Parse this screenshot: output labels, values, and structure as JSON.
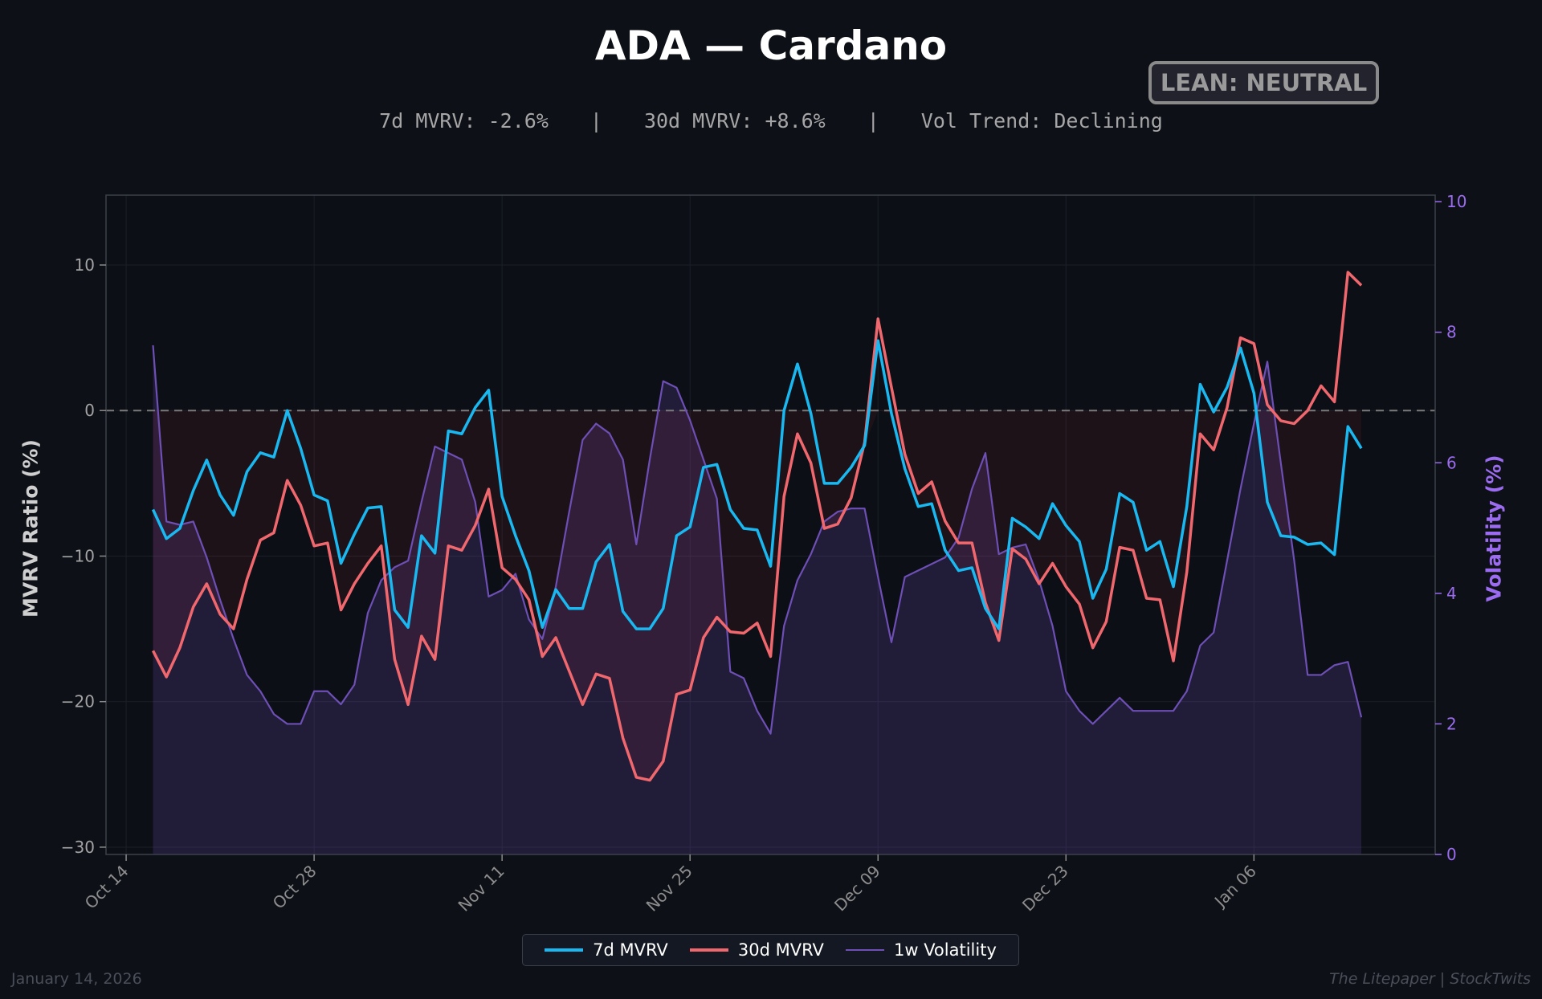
{
  "header": {
    "title": "ADA — Cardano",
    "badge": "LEAN: NEUTRAL",
    "metric_7d": "7d MVRV: -2.6%",
    "metric_30d": "30d MVRV: +8.6%",
    "metric_vol": "Vol Trend: Declining",
    "separator": "|"
  },
  "footer": {
    "date": "January 14, 2026",
    "credit": "The Litepaper | StockTwits"
  },
  "colors": {
    "background": "#0d1017",
    "mvrv7": "#1ab8f0",
    "mvrv30": "#f0686e",
    "vol": "#6d4fb5",
    "vol_axis": "#9b6cf0"
  },
  "chart_data": {
    "type": "line",
    "x_axis_label": "",
    "y_left_label": "MVRV Ratio (%)",
    "y_right_label": "Volatility (%)",
    "x_ticks": [
      "Oct 14",
      "Oct 28",
      "Nov 11",
      "Nov 25",
      "Dec 09",
      "Dec 23",
      "Jan 06"
    ],
    "x_start_date": "2025-10-16",
    "x_range_days": [
      -3.5,
      95.5
    ],
    "y_left_ticks": [
      "10",
      "0",
      "−10",
      "−20",
      "−30"
    ],
    "y_left_tick_values": [
      10,
      0,
      -10,
      -20,
      -30
    ],
    "y_left_range": [
      -30.5,
      14.8
    ],
    "y_right_ticks": [
      "10",
      "8",
      "6",
      "4",
      "2",
      "0"
    ],
    "y_right_tick_values": [
      10,
      8,
      6,
      4,
      2,
      0
    ],
    "y_right_range": [
      0,
      10.1
    ],
    "zero_line": 0,
    "series": [
      {
        "name": "7d MVRV",
        "axis": "left",
        "values": [
          -6.8,
          -8.8,
          -8.1,
          -5.5,
          -3.4,
          -5.8,
          -7.2,
          -4.2,
          -2.9,
          -3.2,
          0.0,
          -2.6,
          -5.8,
          -6.2,
          -10.5,
          -8.5,
          -6.7,
          -6.6,
          -13.7,
          -14.9,
          -8.6,
          -9.8,
          -1.4,
          -1.6,
          0.2,
          1.4,
          -5.9,
          -8.6,
          -11.0,
          -14.9,
          -12.3,
          -13.6,
          -13.6,
          -10.4,
          -9.2,
          -13.8,
          -15.0,
          -15.0,
          -13.6,
          -8.6,
          -8.0,
          -3.9,
          -3.7,
          -6.8,
          -8.1,
          -8.2,
          -10.7,
          0.0,
          3.2,
          -0.2,
          -5.0,
          -5.0,
          -3.9,
          -2.4,
          4.8,
          -0.2,
          -4.0,
          -6.6,
          -6.4,
          -9.6,
          -11.0,
          -10.8,
          -13.6,
          -15.0,
          -7.4,
          -8.0,
          -8.8,
          -6.4,
          -7.9,
          -9.0,
          -12.9,
          -10.9,
          -5.7,
          -6.3,
          -9.6,
          -9.0,
          -12.1,
          -6.6,
          1.8,
          -0.1,
          1.6,
          4.3,
          1.2,
          -6.3,
          -8.6,
          -8.7,
          -9.2,
          -9.1,
          -9.9,
          -1.1,
          -2.6
        ],
        "color": "#1ab8f0"
      },
      {
        "name": "30d MVRV",
        "axis": "left",
        "values": [
          -16.5,
          -18.3,
          -16.3,
          -13.5,
          -11.9,
          -14.0,
          -15.0,
          -11.6,
          -8.9,
          -8.4,
          -4.8,
          -6.5,
          -9.3,
          -9.1,
          -13.7,
          -11.9,
          -10.5,
          -9.3,
          -17.1,
          -20.2,
          -15.5,
          -17.1,
          -9.3,
          -9.6,
          -7.9,
          -5.4,
          -10.8,
          -11.6,
          -13.0,
          -16.9,
          -15.6,
          -17.9,
          -20.2,
          -18.1,
          -18.4,
          -22.5,
          -25.2,
          -25.4,
          -24.1,
          -19.5,
          -19.2,
          -15.6,
          -14.2,
          -15.2,
          -15.3,
          -14.6,
          -16.9,
          -5.9,
          -1.6,
          -3.6,
          -8.1,
          -7.8,
          -6.0,
          -2.2,
          6.3,
          1.6,
          -3.0,
          -5.7,
          -4.9,
          -7.6,
          -9.1,
          -9.1,
          -13.2,
          -15.8,
          -9.5,
          -10.2,
          -11.9,
          -10.5,
          -12.1,
          -13.3,
          -16.3,
          -14.5,
          -9.4,
          -9.6,
          -12.9,
          -13.0,
          -17.2,
          -11.1,
          -1.6,
          -2.7,
          0.2,
          5.0,
          4.6,
          0.4,
          -0.7,
          -0.9,
          0.0,
          1.7,
          0.6,
          9.5,
          8.6
        ],
        "color": "#f0686e"
      },
      {
        "name": "1w Volatility",
        "axis": "right",
        "values": [
          7.8,
          5.1,
          5.05,
          5.1,
          4.55,
          3.9,
          3.3,
          2.75,
          2.5,
          2.15,
          2.0,
          2.0,
          2.5,
          2.5,
          2.3,
          2.6,
          3.7,
          4.2,
          4.4,
          4.5,
          5.4,
          6.25,
          6.15,
          6.05,
          5.4,
          3.95,
          4.05,
          4.3,
          3.6,
          3.3,
          4.1,
          5.25,
          6.35,
          6.6,
          6.45,
          6.05,
          4.75,
          6.05,
          7.25,
          7.15,
          6.65,
          6.05,
          5.45,
          2.8,
          2.7,
          2.2,
          1.85,
          3.5,
          4.2,
          4.6,
          5.1,
          5.25,
          5.3,
          5.3,
          4.25,
          3.25,
          4.25,
          4.35,
          4.45,
          4.55,
          4.85,
          5.6,
          6.15,
          4.6,
          4.7,
          4.75,
          4.2,
          3.5,
          2.5,
          2.2,
          2.0,
          2.2,
          2.4,
          2.2,
          2.2,
          2.2,
          2.2,
          2.5,
          3.2,
          3.4,
          4.5,
          5.6,
          6.6,
          7.55,
          6.0,
          4.5,
          2.75,
          2.75,
          2.9,
          2.95,
          2.1
        ],
        "color": "#6d4fb5"
      }
    ]
  }
}
